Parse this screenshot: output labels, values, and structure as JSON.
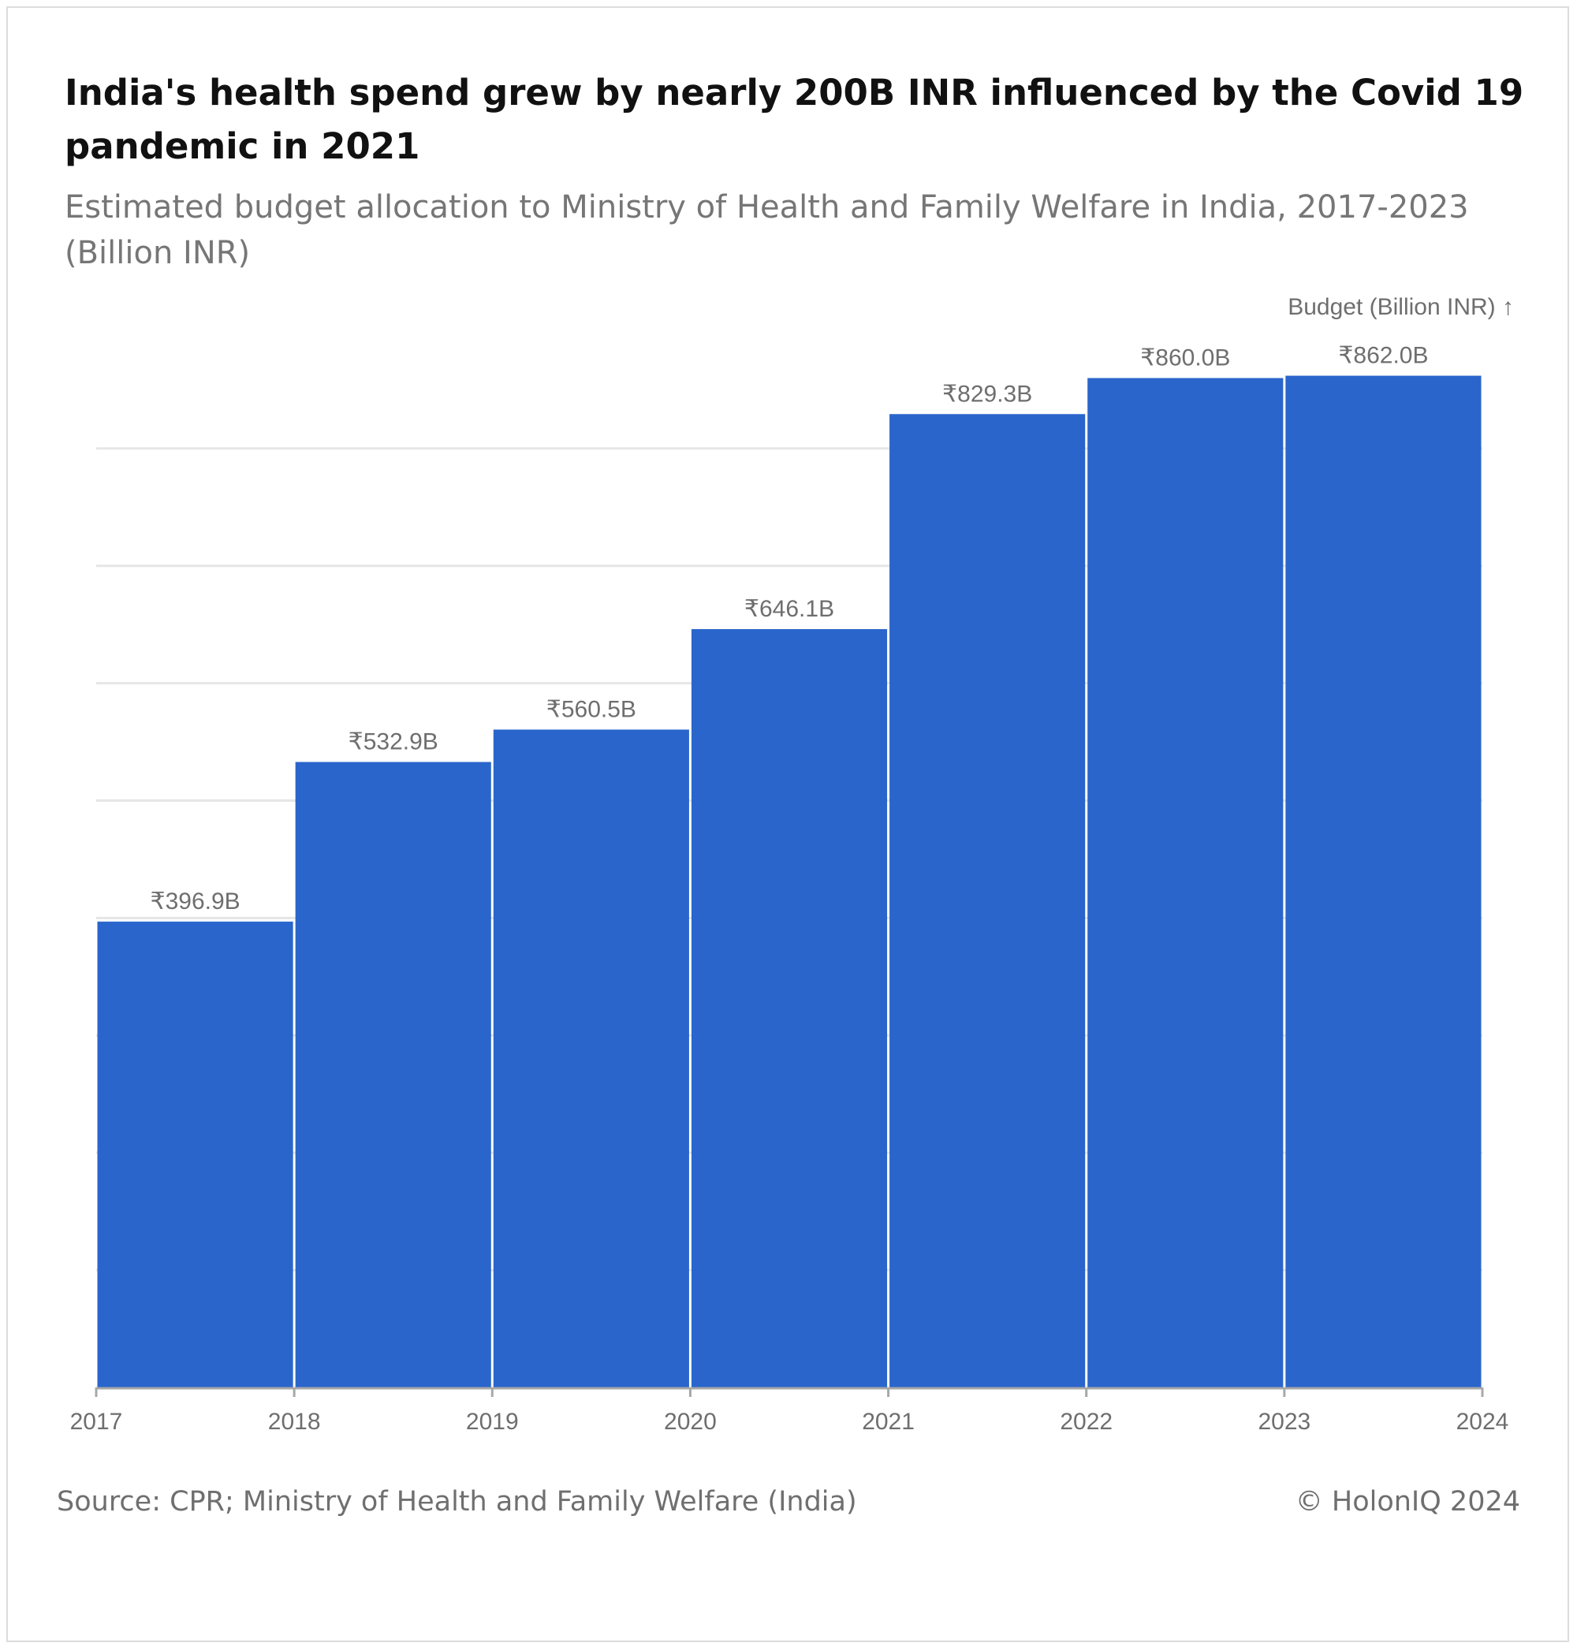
{
  "header": {
    "title": "India's health spend grew by nearly 200B INR influenced by the Covid 19 pandemic in 2021",
    "subtitle": "Estimated budget allocation to Ministry of Health and Family Welfare in India, 2017-2023 (Billion INR)"
  },
  "footer": {
    "source": "Source: CPR; Ministry of Health and Family Welfare (India)",
    "copyright": "© HolonIQ 2024"
  },
  "chart_data": {
    "type": "bar",
    "title": "India's health spend grew by nearly 200B INR influenced by the Covid 19 pandemic in 2021",
    "subtitle": "Estimated budget allocation to Ministry of Health and Family Welfare in India, 2017-2023 (Billion INR)",
    "ylabel": "Budget (Billion INR) ↑",
    "xlabel": "",
    "x_ticks": [
      "2017",
      "2018",
      "2019",
      "2020",
      "2021",
      "2022",
      "2023",
      "2024"
    ],
    "bins": [
      [
        2017,
        2018
      ],
      [
        2018,
        2019
      ],
      [
        2019,
        2020
      ],
      [
        2020,
        2021
      ],
      [
        2021,
        2022
      ],
      [
        2022,
        2023
      ],
      [
        2023,
        2024
      ]
    ],
    "values": [
      396.9,
      532.9,
      560.5,
      646.1,
      829.3,
      860.0,
      862.0
    ],
    "data_labels": [
      "₹396.9B",
      "₹532.9B",
      "₹560.5B",
      "₹646.1B",
      "₹829.3B",
      "₹860.0B",
      "₹862.0B"
    ],
    "ylim": [
      0,
      900
    ],
    "gridlines": [
      100,
      200,
      300,
      400,
      500,
      600,
      700,
      800
    ],
    "grid": true,
    "y_tick_labels_shown": false,
    "bar_color": "#2a65cc",
    "grid_color": "#e6e6e6"
  }
}
